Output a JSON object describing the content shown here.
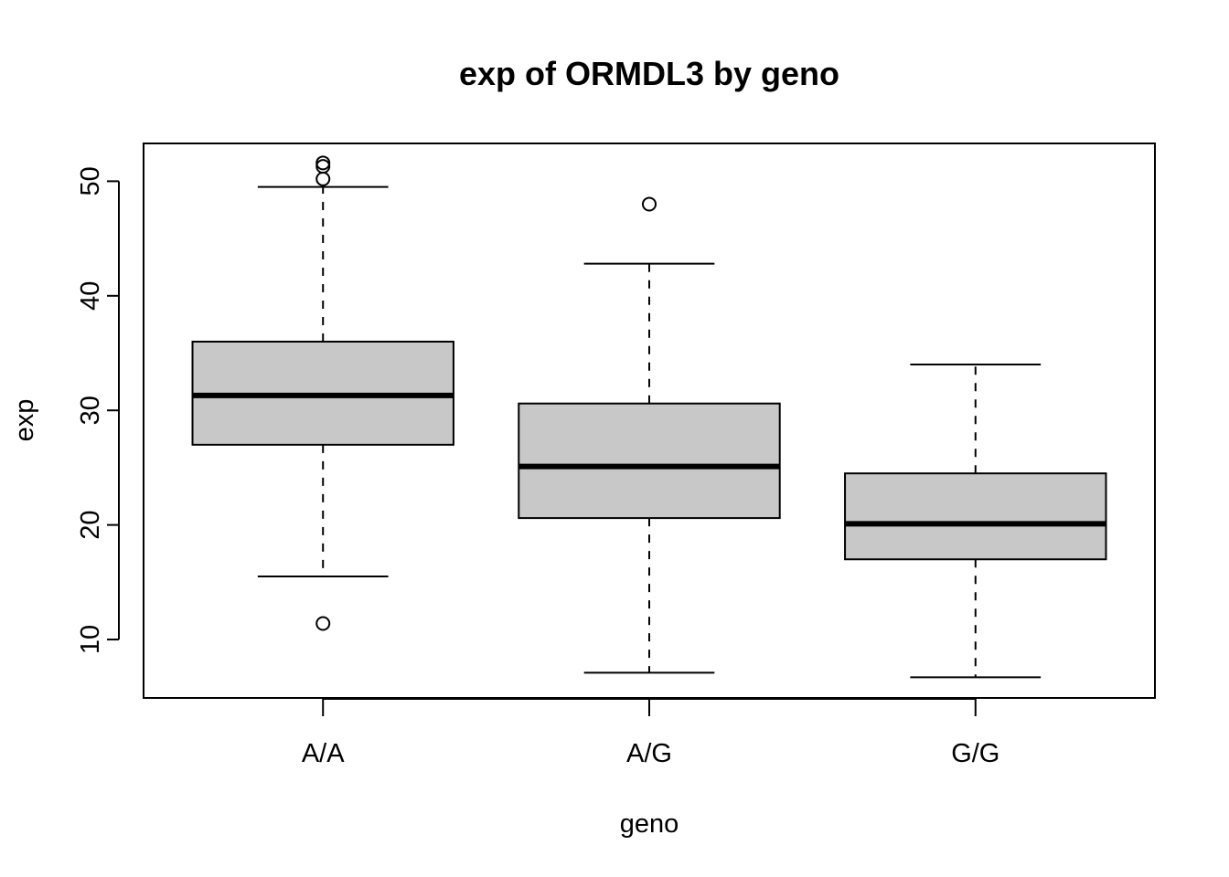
{
  "chart_data": {
    "type": "boxplot",
    "title": "exp of ORMDL3 by geno",
    "xlabel": "geno",
    "ylabel": "exp",
    "ylim": [
      4.9,
      53.3
    ],
    "yticks": [
      10,
      20,
      30,
      40,
      50
    ],
    "categories": [
      "A/A",
      "A/G",
      "G/G"
    ],
    "boxes": [
      {
        "category": "A/A",
        "whisker_low": 15.5,
        "q1": 27.0,
        "median": 31.3,
        "q3": 36.0,
        "whisker_high": 49.5,
        "outliers": [
          51.6,
          51.3,
          50.2,
          11.4
        ]
      },
      {
        "category": "A/G",
        "whisker_low": 7.1,
        "q1": 20.6,
        "median": 25.1,
        "q3": 30.6,
        "whisker_high": 42.8,
        "outliers": [
          48.0
        ]
      },
      {
        "category": "G/G",
        "whisker_low": 6.7,
        "q1": 17.0,
        "median": 20.1,
        "q3": 24.5,
        "whisker_high": 34.0,
        "outliers": []
      }
    ],
    "box_fill": "#c8c8c8",
    "line_color": "#000000",
    "grid": false,
    "legend": "none"
  }
}
